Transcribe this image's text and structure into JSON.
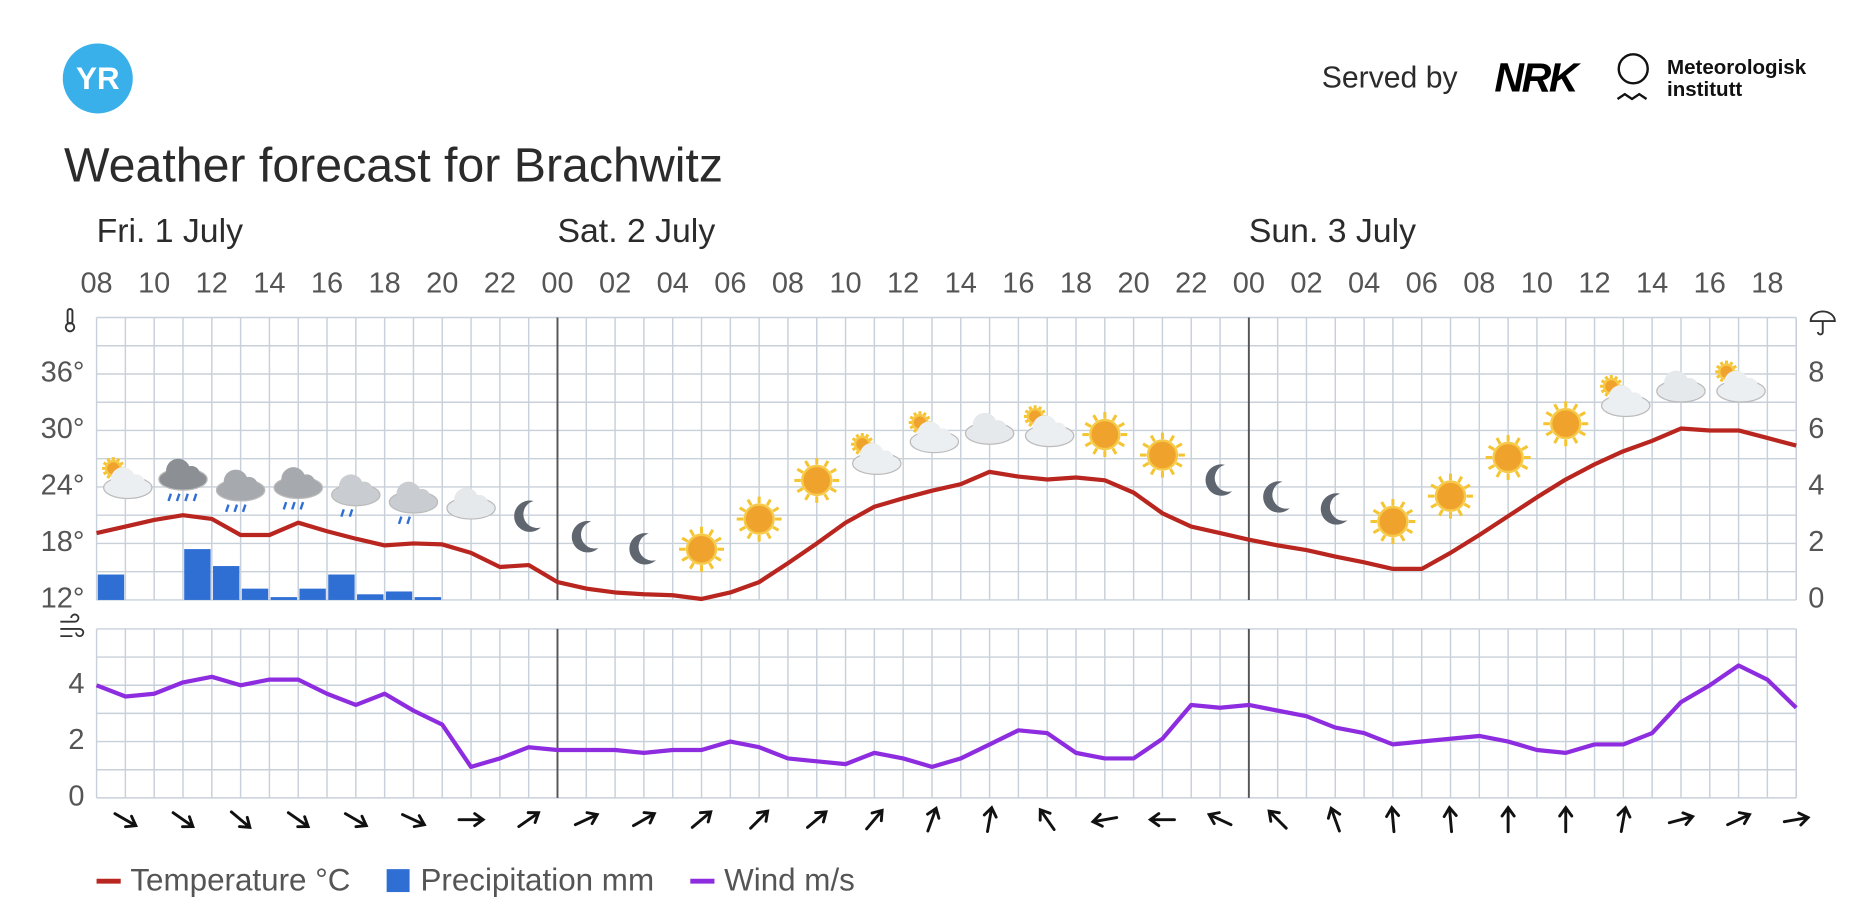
{
  "header": {
    "logo": "YR",
    "served_by": "Served by",
    "partner_1": "NRK",
    "partner_2_line1": "Meteorologisk",
    "partner_2_line2": "institutt"
  },
  "chart_data": [
    {
      "type": "combo",
      "title": "Weather forecast for Brachwitz",
      "days": [
        "Fri. 1 July",
        "Sat. 2 July",
        "Sun. 3 July"
      ],
      "categories": [
        "08",
        null,
        "10",
        null,
        "12",
        null,
        "14",
        null,
        "16",
        null,
        "18",
        null,
        "20",
        null,
        "22",
        null,
        "00",
        null,
        "02",
        null,
        "04",
        null,
        "06",
        null,
        "08",
        null,
        "10",
        null,
        "12",
        null,
        "14",
        null,
        "16",
        null,
        "18",
        null,
        "20",
        null,
        "22",
        null,
        "00",
        null,
        "02",
        null,
        "04",
        null,
        "06",
        null,
        "08",
        null,
        "10",
        null,
        "12",
        null,
        "14",
        null,
        "16",
        null,
        "18",
        null
      ],
      "series": [
        {
          "name": "Temperature °C",
          "type": "line",
          "color": "#b8261f",
          "values": [
            19.1,
            19.8,
            20.5,
            21.0,
            20.6,
            18.9,
            18.9,
            20.2,
            19.3,
            18.5,
            17.8,
            18.0,
            17.9,
            17.0,
            15.5,
            15.7,
            13.9,
            13.2,
            12.8,
            12.6,
            12.5,
            12.1,
            12.8,
            13.9,
            15.9,
            18.0,
            20.2,
            21.9,
            22.8,
            23.6,
            24.3,
            25.6,
            25.1,
            24.8,
            25.0,
            24.7,
            23.4,
            21.2,
            19.8,
            19.1,
            18.4,
            17.8,
            17.3,
            16.6,
            16.0,
            15.3,
            15.3,
            17.0,
            18.9,
            20.9,
            22.9,
            24.8,
            26.4,
            27.8,
            28.9,
            30.2,
            30.0,
            30.0,
            29.2,
            28.4
          ]
        },
        {
          "name": "Precipitation mm",
          "type": "bar",
          "axis": "y2",
          "color": "#2f6fd4",
          "values": [
            0.9,
            0,
            0,
            1.8,
            1.2,
            0.4,
            0.1,
            0.4,
            0.9,
            0.2,
            0.3,
            0.1,
            0,
            0,
            0,
            0,
            0,
            0,
            0,
            0,
            0,
            0,
            0,
            0,
            0,
            0,
            0,
            0,
            0,
            0,
            0,
            0,
            0,
            0,
            0,
            0,
            0,
            0,
            0,
            0,
            0,
            0,
            0,
            0,
            0,
            0,
            0,
            0,
            0,
            0,
            0,
            0,
            0,
            0,
            0,
            0,
            0,
            0,
            0,
            0
          ]
        }
      ],
      "ylim": [
        12,
        42
      ],
      "yticks": [
        {
          "value": 12,
          "label": "12°"
        },
        {
          "value": 18,
          "label": "18°"
        },
        {
          "value": 24,
          "label": "24°"
        },
        {
          "value": 30,
          "label": "30°"
        },
        {
          "value": 36,
          "label": "36°"
        }
      ],
      "y2lim": [
        0,
        10
      ],
      "y2ticks": [
        0,
        2,
        4,
        6,
        8
      ],
      "grid": true
    },
    {
      "type": "line",
      "series": [
        {
          "name": "Wind m/s",
          "color": "#8e2ce0",
          "values": [
            4.0,
            3.6,
            3.7,
            4.1,
            4.3,
            4.0,
            4.2,
            4.2,
            3.7,
            3.3,
            3.7,
            3.1,
            2.6,
            1.1,
            1.4,
            1.8,
            1.7,
            1.7,
            1.7,
            1.6,
            1.7,
            1.7,
            2.0,
            1.8,
            1.4,
            1.3,
            1.2,
            1.6,
            1.4,
            1.1,
            1.4,
            1.9,
            2.4,
            2.3,
            1.6,
            1.4,
            1.4,
            2.1,
            3.3,
            3.2,
            3.3,
            3.1,
            2.9,
            2.5,
            2.3,
            1.9,
            2.0,
            2.1,
            2.2,
            2.0,
            1.7,
            1.6,
            1.9,
            1.9,
            2.3,
            3.4,
            4.0,
            4.7,
            4.2,
            3.2
          ]
        }
      ],
      "wind_direction": [
        30,
        35,
        40,
        35,
        30,
        25,
        0,
        -35,
        -25,
        -30,
        -40,
        -45,
        -40,
        -50,
        -70,
        -80,
        -125,
        170,
        180,
        205,
        225,
        250,
        265,
        265,
        270,
        270,
        280,
        -15,
        -25,
        -10
      ],
      "ylim": [
        0,
        6
      ],
      "yticks": [
        0,
        2,
        4
      ],
      "grid": true
    }
  ]
}
